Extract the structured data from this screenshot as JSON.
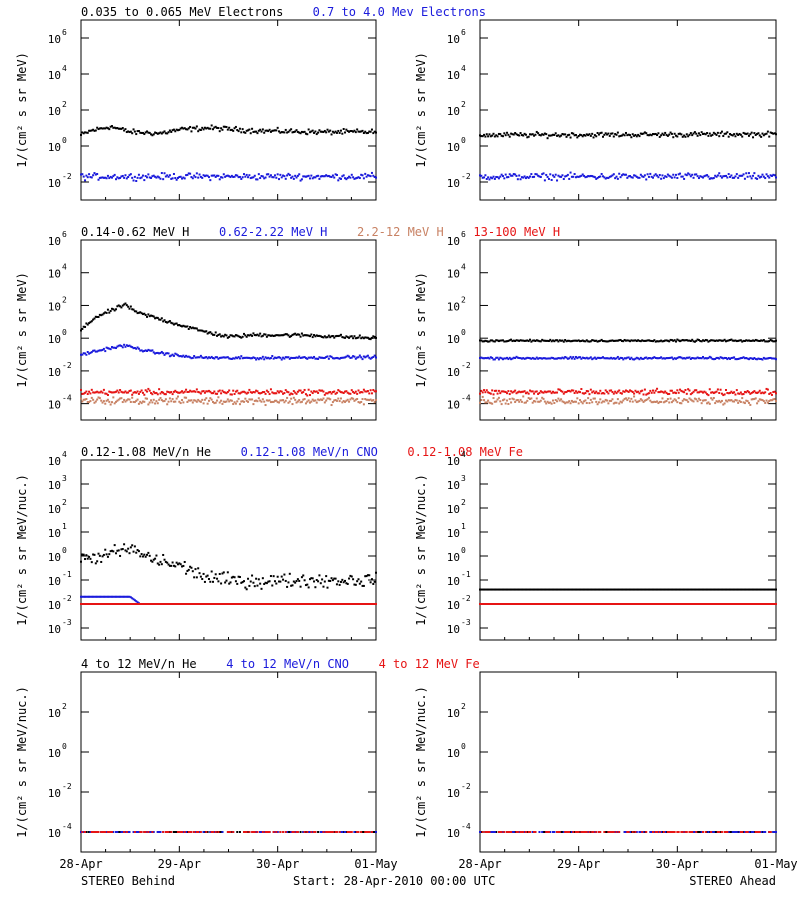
{
  "colors": {
    "black": "#000000",
    "blue": "#1a1adc",
    "tan": "#c88264",
    "red": "#e61414",
    "pink": "#ff8c8c"
  },
  "x_ticks": [
    "28-Apr",
    "29-Apr",
    "30-Apr",
    "01-May"
  ],
  "footer": {
    "left": "STEREO Behind",
    "center": "Start: 28-Apr-2010 00:00 UTC",
    "right": "STEREO Ahead"
  },
  "rows": [
    {
      "ylabel": "1/(cm² s sr MeV)",
      "ylim_log10": [
        -3,
        7
      ],
      "ticks": [
        {
          "e": -2,
          "label": "10"
        },
        {
          "e": 0,
          "label": "10"
        },
        {
          "e": 2,
          "label": "10"
        },
        {
          "e": 4,
          "label": "10"
        },
        {
          "e": 6,
          "label": "10"
        }
      ],
      "tick_style": "pow",
      "titles": [
        {
          "text": "0.035 to 0.065 MeV Electrons",
          "color": "black"
        },
        {
          "text": "0.7 to 4.0 Mev Electrons",
          "color": "blue"
        }
      ]
    },
    {
      "ylabel": "1/(cm² s sr MeV)",
      "ylim_log10": [
        -5,
        6
      ],
      "ticks": [
        {
          "e": -4,
          "label": "10"
        },
        {
          "e": -2,
          "label": "10"
        },
        {
          "e": 0,
          "label": "10"
        },
        {
          "e": 2,
          "label": "10"
        },
        {
          "e": 4,
          "label": "10"
        },
        {
          "e": 6,
          "label": "10"
        }
      ],
      "tick_style": "pow",
      "titles": [
        {
          "text": "0.14-0.62 MeV H",
          "color": "black"
        },
        {
          "text": "0.62-2.22 MeV H",
          "color": "blue"
        },
        {
          "text": "2.2-12 MeV H",
          "color": "tan"
        },
        {
          "text": "13-100 MeV H",
          "color": "red"
        }
      ]
    },
    {
      "ylabel": "1/(cm² s sr MeV/nuc.)",
      "ylim_log10": [
        -3.5,
        4
      ],
      "ticks": [
        {
          "e": -3
        },
        {
          "e": -2
        },
        {
          "e": -1
        },
        {
          "e": 0
        },
        {
          "e": 1
        },
        {
          "e": 2
        },
        {
          "e": 3
        },
        {
          "e": 4
        }
      ],
      "tick_style": "dec",
      "tick_labels": [
        "10-3",
        "10-2",
        "10-1",
        "100",
        "101",
        "102",
        "103",
        "104"
      ],
      "titles": [
        {
          "text": "0.12-1.08 MeV/n He",
          "color": "black"
        },
        {
          "text": "0.12-1.08 MeV/n CNO",
          "color": "blue"
        },
        {
          "text": "0.12-1.08 MeV Fe",
          "color": "red"
        }
      ]
    },
    {
      "ylabel": "1/(cm² s sr MeV/nuc.)",
      "ylim_log10": [
        -5,
        4
      ],
      "ticks": [
        {
          "e": -4,
          "label": "10"
        },
        {
          "e": -2,
          "label": "10"
        },
        {
          "e": 0,
          "label": "10"
        },
        {
          "e": 2,
          "label": "10"
        }
      ],
      "tick_style": "pow",
      "titles": [
        {
          "text": "4 to 12 MeV/n He",
          "color": "black"
        },
        {
          "text": "4 to 12 MeV/n CNO",
          "color": "blue"
        },
        {
          "text": "4 to 12 MeV Fe",
          "color": "red"
        }
      ]
    }
  ],
  "chart_data": [
    {
      "type": "scatter",
      "panel": "Behind electrons",
      "xlim": [
        "28-Apr",
        "01-May"
      ],
      "ylim": [
        "1e-3",
        "1e7"
      ],
      "yscale": "log",
      "series": [
        {
          "name": "0.035 to 0.065 MeV Electrons",
          "color": "black",
          "profile": [
            [
              0,
              4
            ],
            [
              0.1,
              7
            ],
            [
              0.3,
              12
            ],
            [
              0.5,
              6
            ],
            [
              0.8,
              5
            ],
            [
              1.0,
              8
            ],
            [
              1.3,
              10
            ],
            [
              1.8,
              7
            ],
            [
              2.4,
              6
            ],
            [
              3,
              6
            ]
          ],
          "scatter_dex": 0.12
        },
        {
          "name": "0.7 to 4.0 Mev Electrons",
          "color": "blue",
          "profile": [
            [
              0,
              0.02
            ],
            [
              3,
              0.02
            ]
          ],
          "scatter_dex": 0.15
        }
      ]
    },
    {
      "type": "scatter",
      "panel": "Ahead electrons",
      "xlim": [
        "28-Apr",
        "01-May"
      ],
      "ylim": [
        "1e-3",
        "1e7"
      ],
      "yscale": "log",
      "series": [
        {
          "name": "0.035 to 0.065 MeV Electrons",
          "color": "black",
          "profile": [
            [
              0,
              4
            ],
            [
              3,
              4.5
            ]
          ],
          "scatter_dex": 0.12
        },
        {
          "name": "0.7 to 4.0 Mev Electrons",
          "color": "blue",
          "profile": [
            [
              0,
              0.02
            ],
            [
              3,
              0.02
            ]
          ],
          "scatter_dex": 0.15
        }
      ]
    },
    {
      "type": "scatter",
      "panel": "Behind protons",
      "xlim": [
        "28-Apr",
        "01-May"
      ],
      "ylim": [
        "1e-5",
        "1e6"
      ],
      "yscale": "log",
      "series": [
        {
          "name": "0.14-0.62 MeV H",
          "color": "black",
          "profile": [
            [
              0,
              3
            ],
            [
              0.15,
              20
            ],
            [
              0.35,
              60
            ],
            [
              0.45,
              120
            ],
            [
              0.55,
              40
            ],
            [
              0.8,
              15
            ],
            [
              1.2,
              3
            ],
            [
              1.5,
              1.2
            ],
            [
              1.8,
              1.6
            ],
            [
              2.3,
              1.5
            ],
            [
              3,
              1.0
            ]
          ],
          "scatter_dex": 0.1
        },
        {
          "name": "0.62-2.22 MeV H",
          "color": "blue",
          "profile": [
            [
              0,
              0.1
            ],
            [
              0.3,
              0.25
            ],
            [
              0.45,
              0.35
            ],
            [
              0.7,
              0.15
            ],
            [
              1.1,
              0.07
            ],
            [
              1.5,
              0.06
            ],
            [
              3,
              0.07
            ]
          ],
          "scatter_dex": 0.08
        },
        {
          "name": "2.2-12 MeV H",
          "color": "tan",
          "profile": [
            [
              0,
              0.00015
            ],
            [
              3,
              0.00015
            ]
          ],
          "scatter_dex": 0.18
        },
        {
          "name": "13-100 MeV H",
          "color": "red",
          "profile": [
            [
              0,
              0.0005
            ],
            [
              3,
              0.0005
            ]
          ],
          "scatter_dex": 0.14
        }
      ]
    },
    {
      "type": "scatter",
      "panel": "Ahead protons",
      "xlim": [
        "28-Apr",
        "01-May"
      ],
      "ylim": [
        "1e-5",
        "1e6"
      ],
      "yscale": "log",
      "series": [
        {
          "name": "0.14-0.62 MeV H",
          "color": "black",
          "profile": [
            [
              0,
              0.7
            ],
            [
              3,
              0.7
            ]
          ],
          "scatter_dex": 0.05
        },
        {
          "name": "0.62-2.22 MeV H",
          "color": "blue",
          "profile": [
            [
              0,
              0.06
            ],
            [
              3,
              0.06
            ]
          ],
          "scatter_dex": 0.06
        },
        {
          "name": "2.2-12 MeV H",
          "color": "tan",
          "profile": [
            [
              0,
              0.00015
            ],
            [
              3,
              0.00015
            ]
          ],
          "scatter_dex": 0.18
        },
        {
          "name": "13-100 MeV H",
          "color": "red",
          "profile": [
            [
              0,
              0.0005
            ],
            [
              3,
              0.0005
            ]
          ],
          "scatter_dex": 0.14
        }
      ]
    },
    {
      "type": "scatter",
      "panel": "Behind 0.12-1.08 MeV/n ions",
      "xlim": [
        "28-Apr",
        "01-May"
      ],
      "ylim": [
        "3e-4",
        "1e4"
      ],
      "yscale": "log",
      "series": [
        {
          "name": "0.12-1.08 MeV/n He",
          "color": "black",
          "profile": [
            [
              0,
              0.7
            ],
            [
              0.3,
              1.2
            ],
            [
              0.5,
              2.0
            ],
            [
              0.7,
              0.8
            ],
            [
              1.0,
              0.4
            ],
            [
              1.3,
              0.12
            ],
            [
              1.6,
              0.09
            ],
            [
              3,
              0.1
            ]
          ],
          "scatter_dex": 0.25,
          "floor": 0.04
        },
        {
          "name": "0.12-1.08 MeV/n CNO",
          "color": "blue",
          "profile": [
            [
              0,
              0.02
            ],
            [
              0.5,
              0.02
            ],
            [
              0.6,
              0.01
            ],
            [
              3,
              0.01
            ]
          ],
          "scatter_dex": 0.0
        },
        {
          "name": "0.12-1.08 MeV Fe",
          "color": "red",
          "profile": [
            [
              0,
              0.01
            ],
            [
              3,
              0.01
            ]
          ],
          "scatter_dex": 0.0
        }
      ]
    },
    {
      "type": "scatter",
      "panel": "Ahead 0.12-1.08 MeV/n ions",
      "xlim": [
        "28-Apr",
        "01-May"
      ],
      "ylim": [
        "3e-4",
        "1e4"
      ],
      "yscale": "log",
      "series": [
        {
          "name": "0.12-1.08 MeV/n He",
          "color": "black",
          "profile": [
            [
              0,
              0.04
            ],
            [
              3,
              0.04
            ]
          ],
          "scatter_dex": 0.0,
          "floor": 0.04
        },
        {
          "name": "0.12-1.08 MeV/n CNO",
          "color": "blue",
          "profile": [
            [
              0,
              0.01
            ],
            [
              3,
              0.01
            ]
          ],
          "scatter_dex": 0.0
        },
        {
          "name": "0.12-1.08 MeV Fe",
          "color": "red",
          "profile": [
            [
              0,
              0.01
            ],
            [
              3,
              0.01
            ]
          ],
          "scatter_dex": 0.0
        }
      ]
    },
    {
      "type": "scatter",
      "panel": "Behind 4-12 MeV/n ions",
      "xlim": [
        "28-Apr",
        "01-May"
      ],
      "ylim": [
        "1e-5",
        "1e4"
      ],
      "yscale": "log",
      "series": [
        {
          "name": "4 to 12 MeV/n He",
          "color": "black",
          "profile": [
            [
              0,
              0.0001
            ],
            [
              3,
              0.0001
            ]
          ],
          "scatter_dex": 0.0
        },
        {
          "name": "4 to 12 MeV/n CNO",
          "color": "blue",
          "profile": [
            [
              0,
              0.0001
            ],
            [
              3,
              0.0001
            ]
          ],
          "scatter_dex": 0.0
        },
        {
          "name": "4 to 12 MeV Fe",
          "color": "red",
          "profile": [
            [
              0,
              0.0001
            ],
            [
              3,
              0.0001
            ]
          ],
          "scatter_dex": 0.0
        }
      ]
    },
    {
      "type": "scatter",
      "panel": "Ahead 4-12 MeV/n ions",
      "xlim": [
        "28-Apr",
        "01-May"
      ],
      "ylim": [
        "1e-5",
        "1e4"
      ],
      "yscale": "log",
      "series": [
        {
          "name": "4 to 12 MeV/n He",
          "color": "black",
          "profile": [
            [
              0,
              0.0001
            ],
            [
              3,
              0.0001
            ]
          ],
          "scatter_dex": 0.0
        },
        {
          "name": "4 to 12 MeV/n CNO",
          "color": "blue",
          "profile": [
            [
              0,
              0.0001
            ],
            [
              3,
              0.0001
            ]
          ],
          "scatter_dex": 0.0
        },
        {
          "name": "4 to 12 MeV Fe",
          "color": "red",
          "profile": [
            [
              0,
              0.0001
            ],
            [
              3,
              0.0001
            ]
          ],
          "scatter_dex": 0.0
        }
      ]
    }
  ]
}
